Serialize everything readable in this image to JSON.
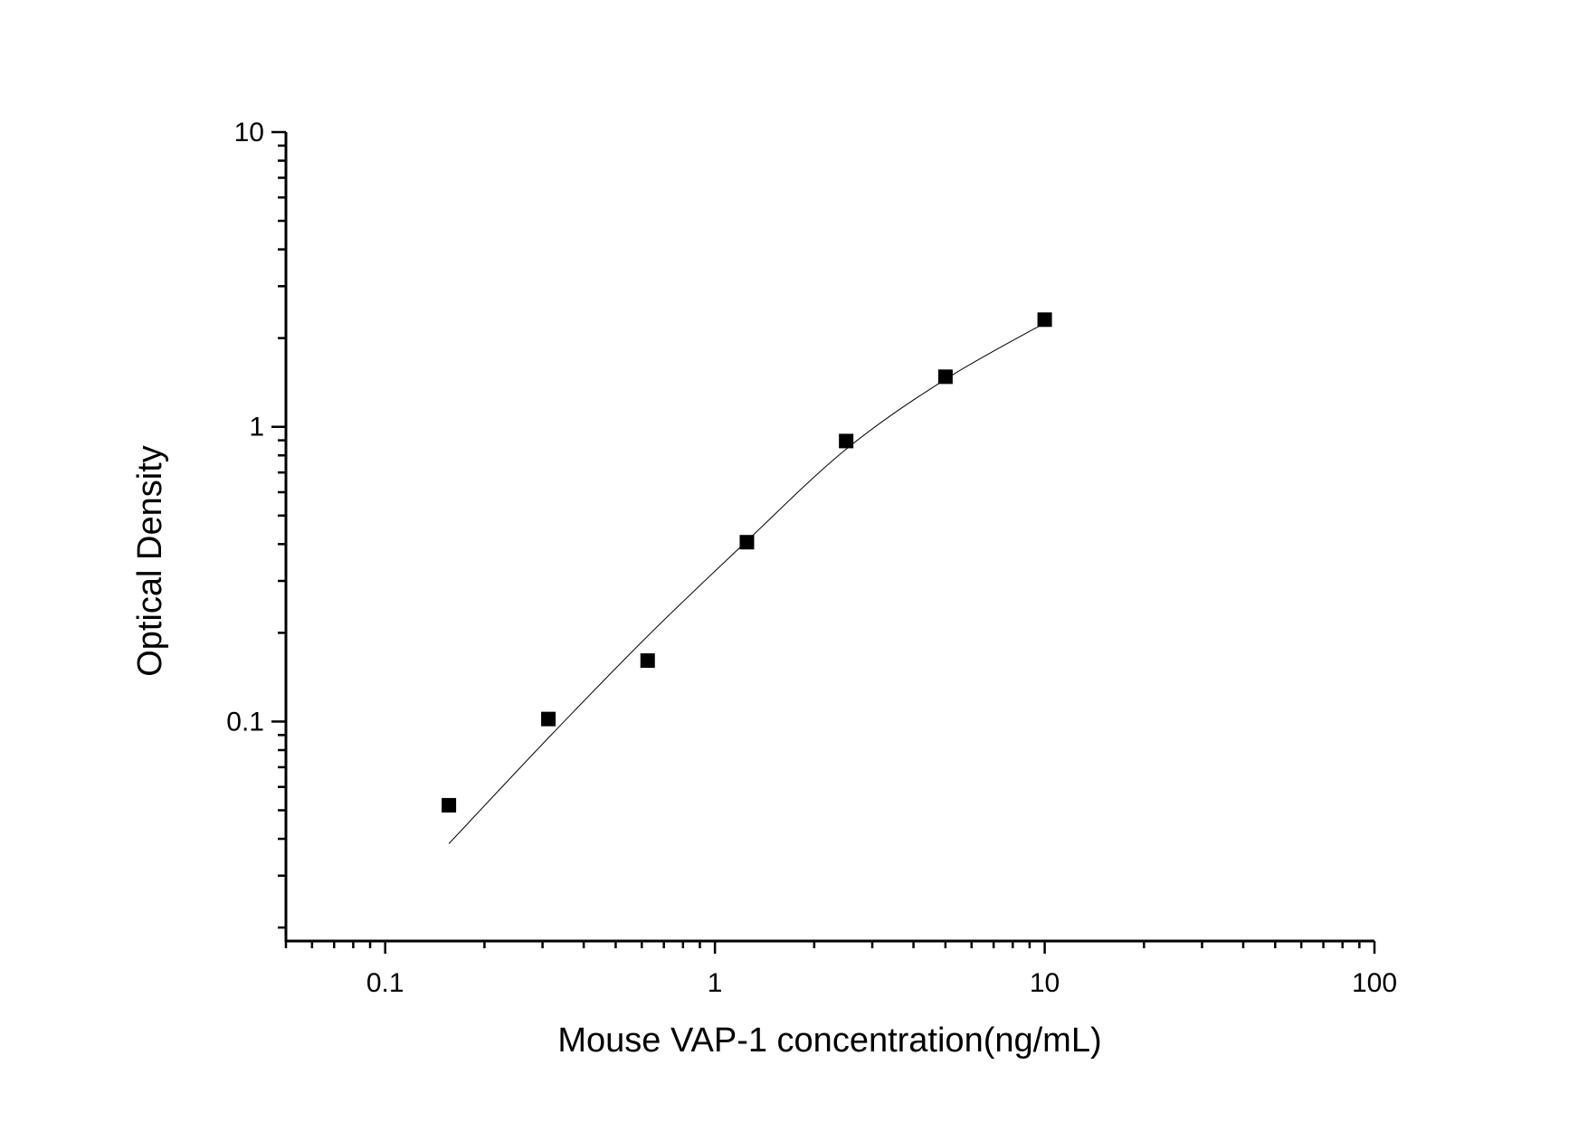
{
  "chart_data": {
    "type": "scatter",
    "title": "",
    "xlabel": "Mouse VAP-1 concentration(ng/mL)",
    "ylabel": "Optical Density",
    "xscale": "log",
    "yscale": "log",
    "xlim": [
      0.05,
      100
    ],
    "ylim": [
      0.018,
      10
    ],
    "xticks": [
      {
        "value": 0.1,
        "label": "0.1"
      },
      {
        "value": 1,
        "label": "1"
      },
      {
        "value": 10,
        "label": "10"
      },
      {
        "value": 100,
        "label": "100"
      }
    ],
    "yticks": [
      {
        "value": 0.1,
        "label": "0.1"
      },
      {
        "value": 1,
        "label": "1"
      },
      {
        "value": 10,
        "label": "10"
      }
    ],
    "grid": false,
    "marker": "square",
    "color": "#000000",
    "points": {
      "x": [
        0.156,
        0.3125,
        0.625,
        1.25,
        2.5,
        5,
        10
      ],
      "y": [
        0.052,
        0.102,
        0.161,
        0.406,
        0.895,
        1.479,
        2.31
      ]
    },
    "fitted_curve": {
      "x": [
        0.156,
        0.3125,
        0.625,
        1.25,
        2.5,
        5,
        10
      ],
      "y": [
        0.0385,
        0.088,
        0.195,
        0.41,
        0.84,
        1.45,
        2.25
      ]
    }
  }
}
